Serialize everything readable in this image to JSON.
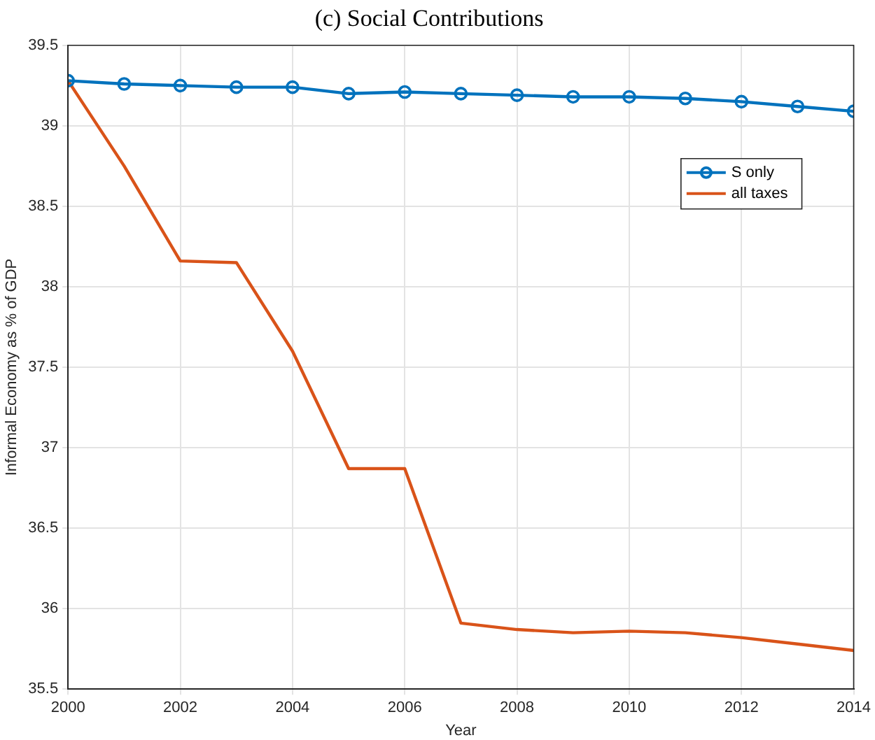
{
  "chart_data": {
    "type": "line",
    "title": "(c) Social Contributions",
    "xlabel": "Year",
    "ylabel": "Informal Economy as % of GDP",
    "x": [
      2000,
      2001,
      2002,
      2003,
      2004,
      2005,
      2006,
      2007,
      2008,
      2009,
      2010,
      2011,
      2012,
      2013,
      2014
    ],
    "series": [
      {
        "name": "S only",
        "color": "#0072bd",
        "marker": "circle",
        "values": [
          39.28,
          39.26,
          39.25,
          39.24,
          39.24,
          39.2,
          39.21,
          39.2,
          39.19,
          39.18,
          39.18,
          39.17,
          39.15,
          39.12,
          39.09
        ]
      },
      {
        "name": "all taxes",
        "color": "#d95319",
        "marker": "none",
        "values": [
          39.28,
          38.75,
          38.16,
          38.15,
          37.6,
          36.87,
          36.87,
          35.91,
          35.87,
          35.85,
          35.86,
          35.85,
          35.82,
          35.78,
          35.74
        ]
      }
    ],
    "xlim": [
      2000,
      2014
    ],
    "xticks": [
      2000,
      2002,
      2004,
      2006,
      2008,
      2010,
      2012,
      2014
    ],
    "ylim": [
      35.5,
      39.5
    ],
    "yticks": [
      35.5,
      36,
      36.5,
      37,
      37.5,
      38,
      38.5,
      39,
      39.5
    ],
    "grid": true,
    "legend": "top right",
    "line_style": "solid"
  }
}
